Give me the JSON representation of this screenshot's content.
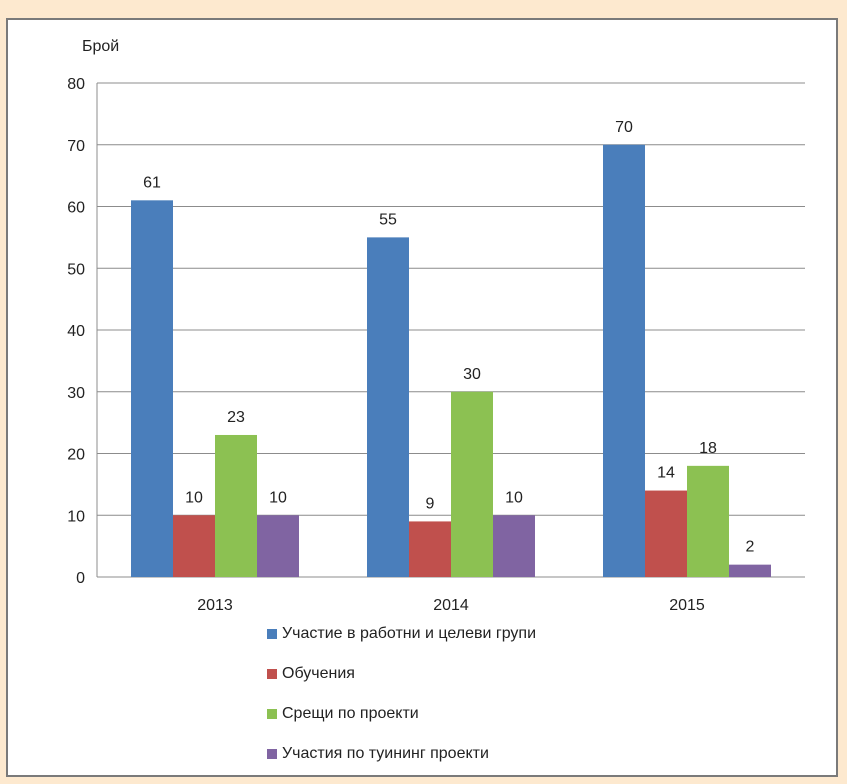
{
  "chart_data": {
    "type": "bar",
    "ylabel": "Брой",
    "ylim": [
      0,
      80
    ],
    "yticks": [
      0,
      10,
      20,
      30,
      40,
      50,
      60,
      70,
      80
    ],
    "categories": [
      "2013",
      "2014",
      "2015"
    ],
    "grid": true,
    "legend_position": "bottom",
    "series": [
      {
        "name": "Участие в работни и целеви групи",
        "color": "#4a7ebb",
        "values": [
          61,
          55,
          70
        ]
      },
      {
        "name": "Обучения",
        "color": "#c0504d",
        "values": [
          10,
          9,
          14
        ]
      },
      {
        "name": "Срещи по проекти",
        "color": "#8cc152",
        "values": [
          23,
          30,
          18
        ]
      },
      {
        "name": "Участия по туининг проекти",
        "color": "#8064a2",
        "values": [
          10,
          10,
          2
        ]
      }
    ]
  }
}
